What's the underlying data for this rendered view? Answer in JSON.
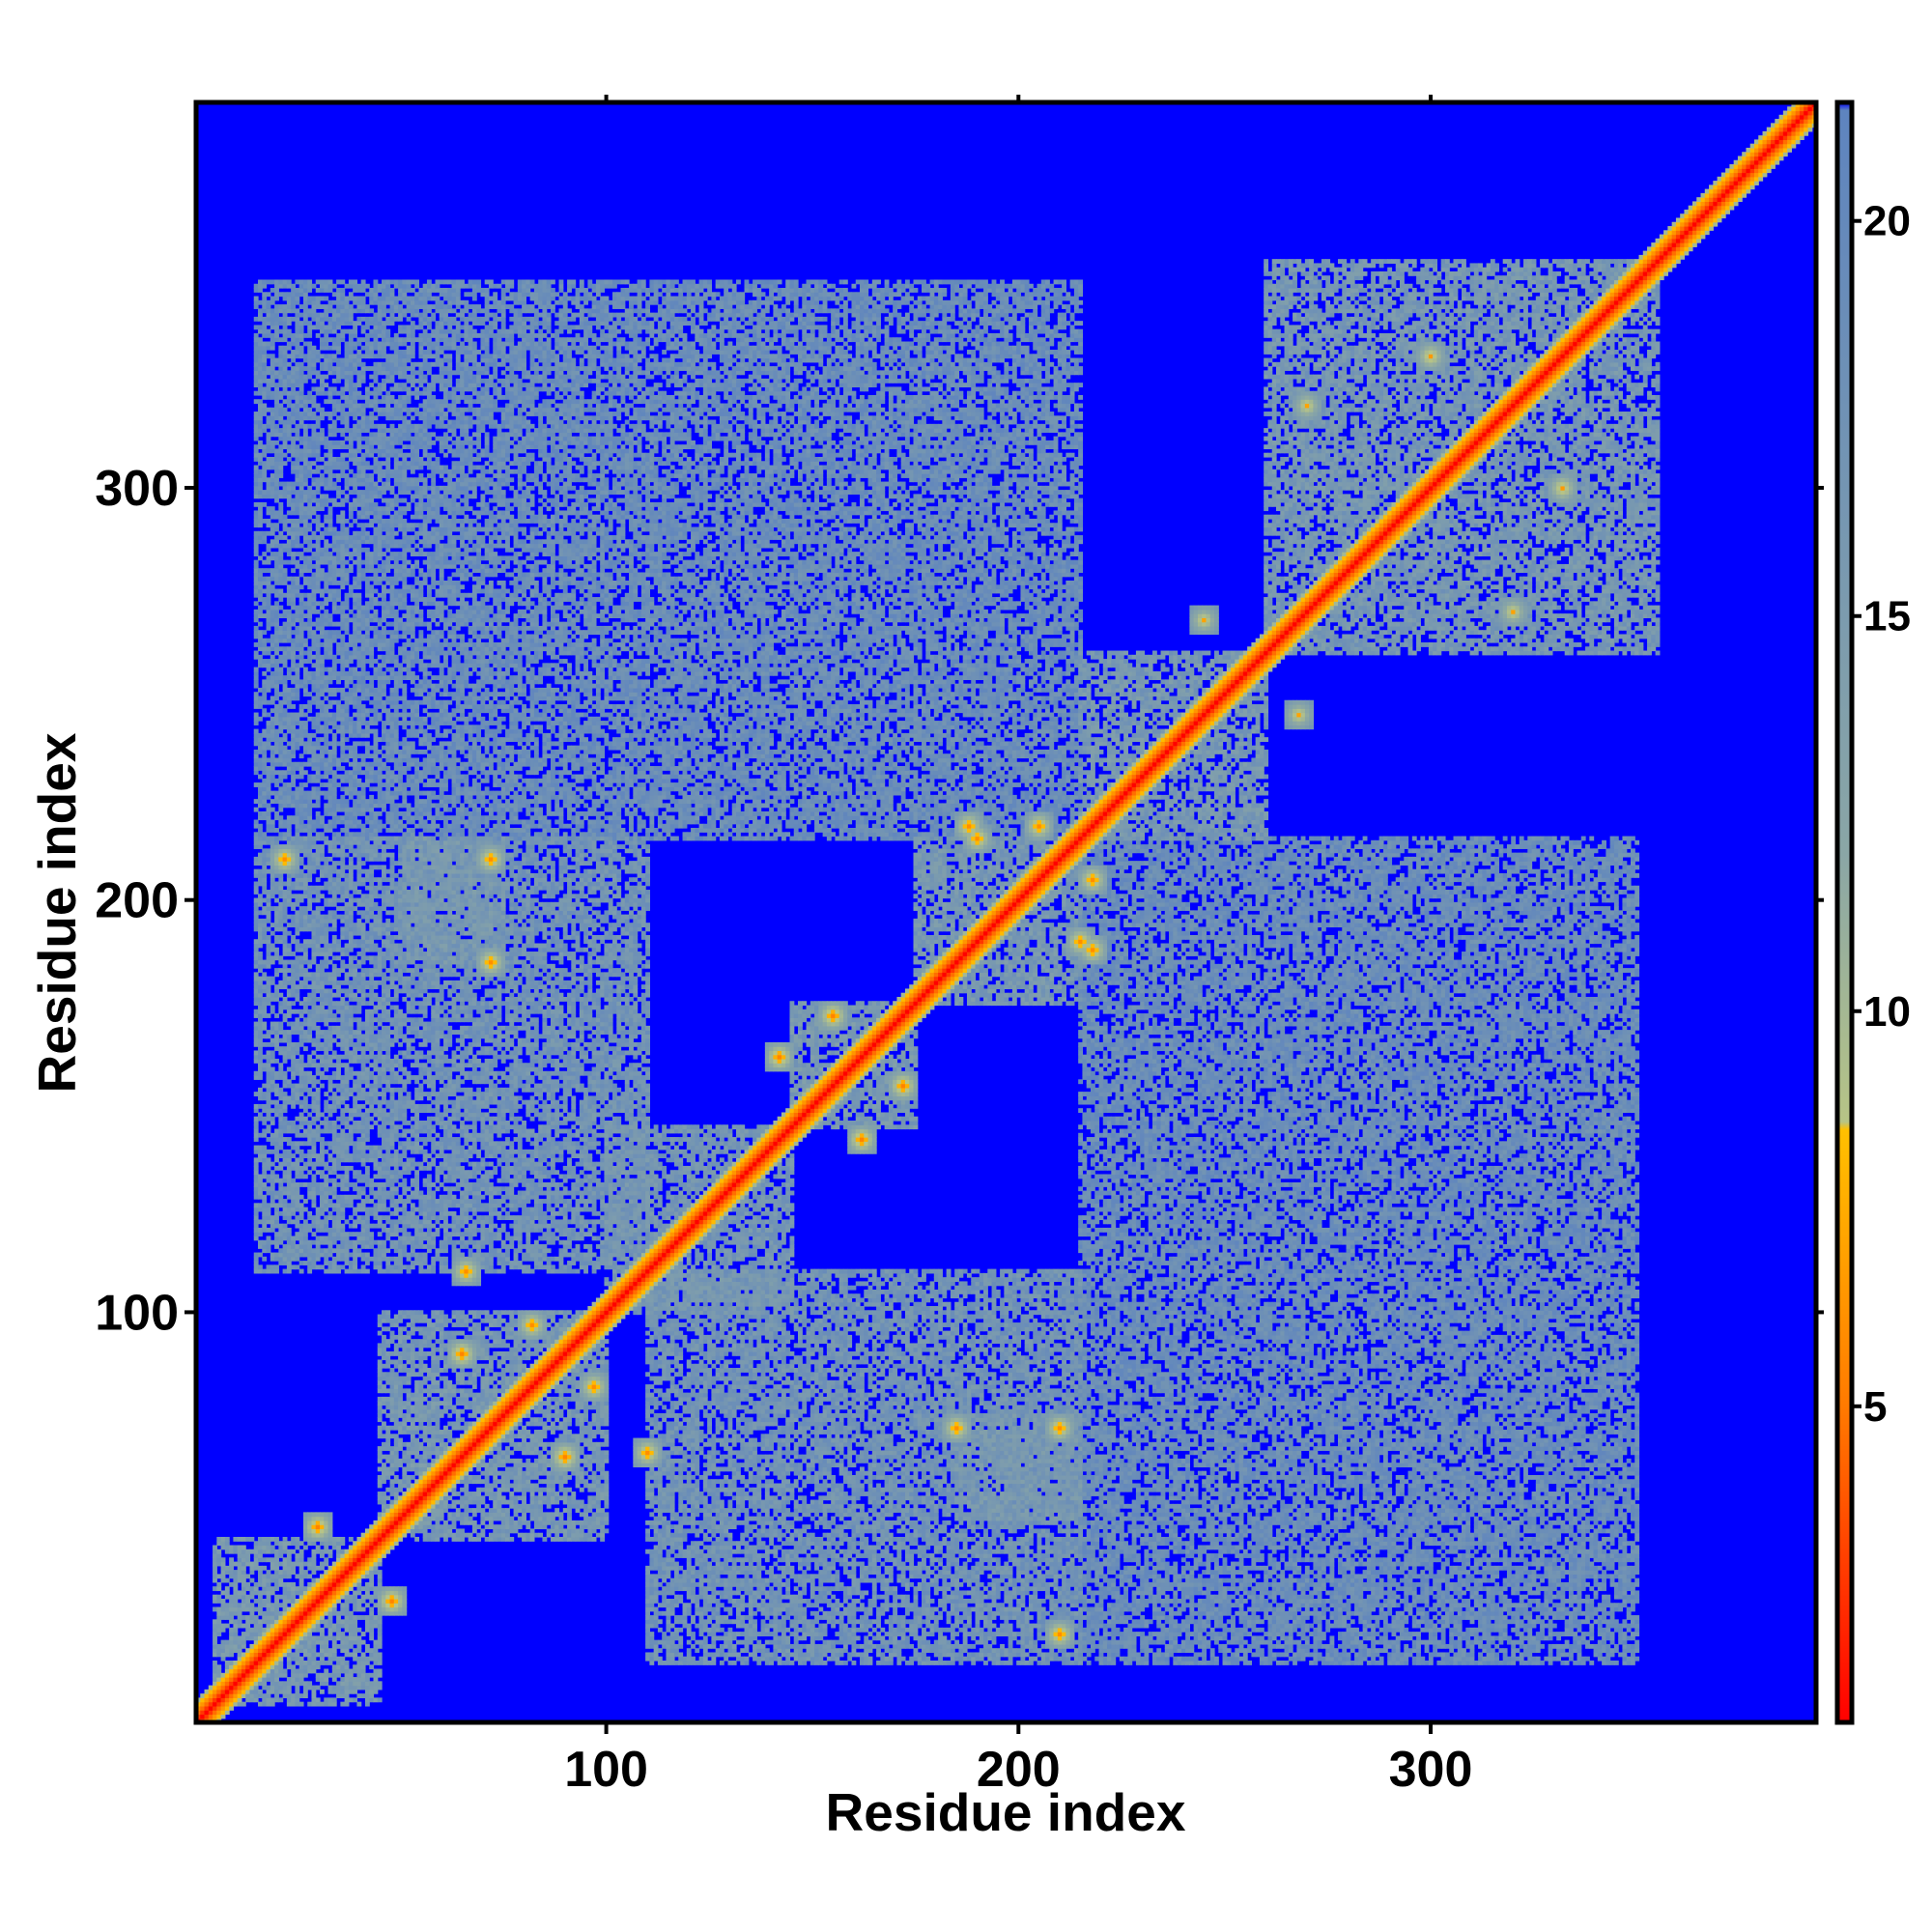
{
  "chart_data": {
    "type": "heatmap",
    "title": "",
    "xlabel": "Residue index",
    "ylabel": "Residue index",
    "xlim": [
      1,
      393
    ],
    "ylim": [
      1,
      393
    ],
    "x_ticks": [
      100,
      200,
      300
    ],
    "y_ticks": [
      100,
      200,
      300
    ],
    "symmetric": true,
    "colorbar": {
      "ticks": [
        5,
        10,
        15,
        20
      ],
      "range": [
        1,
        21.5
      ],
      "stops": [
        {
          "value": 1,
          "color": "#ff0000"
        },
        {
          "value": 5,
          "color": "#ff7a00"
        },
        {
          "value": 8.5,
          "color": "#ffc000"
        },
        {
          "value": 8.6,
          "color": "#b7c486"
        },
        {
          "value": 12,
          "color": "#8aa6a6"
        },
        {
          "value": 21.4,
          "color": "#5e84bf"
        },
        {
          "value": 21.5,
          "color": "#0000ff"
        }
      ]
    },
    "diagonal_band_width": 5,
    "blocks": [
      {
        "i": [
          5,
          45
        ],
        "j": [
          5,
          45
        ],
        "level": 15.5
      },
      {
        "i": [
          45,
          100
        ],
        "j": [
          45,
          100
        ],
        "level": 16
      },
      {
        "i": [
          100,
          145
        ],
        "j": [
          100,
          145
        ],
        "level": 16.5
      },
      {
        "i": [
          145,
          175
        ],
        "j": [
          145,
          175
        ],
        "level": 15.5
      },
      {
        "i": [
          175,
          215
        ],
        "j": [
          175,
          215
        ],
        "level": 16
      },
      {
        "i": [
          215,
          260
        ],
        "j": [
          215,
          260
        ],
        "level": 16
      },
      {
        "i": [
          260,
          355
        ],
        "j": [
          260,
          355
        ],
        "level": 16
      },
      {
        "i": [
          15,
          110
        ],
        "j": [
          110,
          215
        ],
        "level": 17
      },
      {
        "i": [
          110,
          215
        ],
        "j": [
          15,
          110
        ],
        "level": 17
      },
      {
        "i": [
          15,
          215
        ],
        "j": [
          215,
          350
        ],
        "level": 18.5
      },
      {
        "i": [
          215,
          350
        ],
        "j": [
          15,
          215
        ],
        "level": 18.5
      },
      {
        "i": [
          50,
          75
        ],
        "j": [
          185,
          215
        ],
        "level": 16
      },
      {
        "i": [
          185,
          215
        ],
        "j": [
          50,
          75
        ],
        "level": 16
      }
    ],
    "contacts": [
      {
        "residue_i": 30,
        "residue_j": 48,
        "distance": 5.5
      },
      {
        "residue_i": 65,
        "residue_j": 90,
        "distance": 5.5
      },
      {
        "residue_i": 82,
        "residue_j": 97,
        "distance": 6
      },
      {
        "residue_i": 66,
        "residue_j": 110,
        "distance": 6
      },
      {
        "residue_i": 188,
        "residue_j": 218,
        "distance": 6
      },
      {
        "residue_i": 142,
        "residue_j": 162,
        "distance": 5.5
      },
      {
        "residue_i": 155,
        "residue_j": 172,
        "distance": 5.5
      },
      {
        "residue_i": 205,
        "residue_j": 218,
        "distance": 6
      },
      {
        "residue_i": 22,
        "residue_j": 210,
        "distance": 6
      },
      {
        "residue_i": 72,
        "residue_j": 185,
        "distance": 6
      },
      {
        "residue_i": 72,
        "residue_j": 210,
        "distance": 6
      },
      {
        "residue_i": 190,
        "residue_j": 215,
        "distance": 6
      },
      {
        "residue_i": 245,
        "residue_j": 268,
        "distance": 7
      },
      {
        "residue_i": 270,
        "residue_j": 320,
        "distance": 7
      },
      {
        "residue_i": 300,
        "residue_j": 332,
        "distance": 6.5
      }
    ]
  }
}
